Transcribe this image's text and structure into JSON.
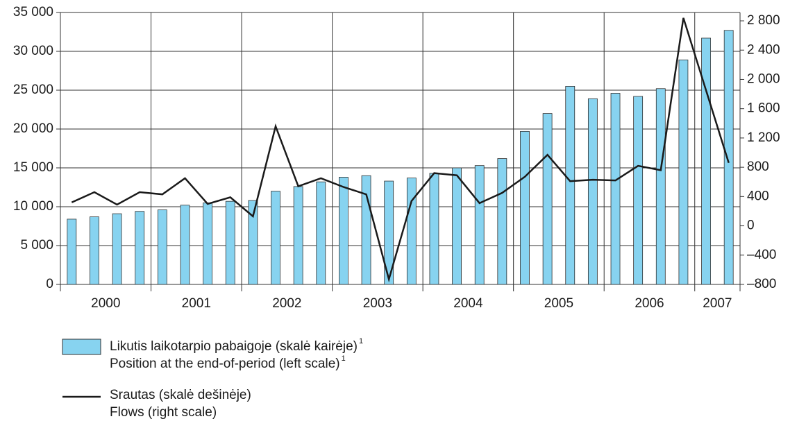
{
  "chart_data": {
    "type": "bar-line",
    "categories": [
      "2000",
      null,
      null,
      null,
      "2001",
      null,
      null,
      null,
      "2002",
      null,
      null,
      null,
      "2003",
      null,
      null,
      null,
      "2004",
      null,
      null,
      null,
      "2005",
      null,
      null,
      null,
      "2006",
      null,
      null,
      null,
      "2007",
      null
    ],
    "series": [
      {
        "name": "Likutis laikotarpio pabaigoje (skalė kairėje)",
        "name_en": "Position at the end-of-period (left scale)",
        "type": "bar",
        "color": "#87d3f0",
        "values": [
          8400,
          8700,
          9100,
          9400,
          9600,
          10200,
          10500,
          10700,
          10800,
          12000,
          12600,
          13200,
          13800,
          14000,
          13300,
          13700,
          14300,
          15000,
          15300,
          16200,
          19700,
          22000,
          25500,
          23900,
          24600,
          24200,
          25200,
          28900,
          31700,
          32700
        ]
      },
      {
        "name": "Srautas (skalė dešinėje)",
        "name_en": "Flows (right scale)",
        "type": "line",
        "axis": "y2",
        "color": "#1a1a1a",
        "values": [
          320,
          460,
          290,
          460,
          430,
          650,
          300,
          390,
          130,
          1360,
          540,
          650,
          530,
          430,
          -730,
          340,
          720,
          690,
          310,
          450,
          670,
          970,
          610,
          630,
          620,
          820,
          760,
          2840,
          1850,
          860
        ]
      }
    ],
    "footnote_mark": "1",
    "ylim": [
      0,
      35000
    ],
    "yticks": [
      0,
      {
        "value": 5000,
        "label": "5 000"
      },
      {
        "value": 10000,
        "label": "10 000"
      },
      {
        "value": 15000,
        "label": "15 000"
      },
      {
        "value": 20000,
        "label": "20 000"
      },
      {
        "value": 25000,
        "label": "25 000"
      },
      {
        "value": 30000,
        "label": "30 000"
      },
      {
        "value": 35000,
        "label": "35 000"
      }
    ],
    "y2lim": [
      -800,
      2914
    ],
    "y2ticks": [
      {
        "value": -800,
        "label": "–800"
      },
      {
        "value": -400,
        "label": "–400"
      },
      0,
      400,
      800,
      {
        "value": 1200,
        "label": "1 200"
      },
      {
        "value": 1600,
        "label": "1 600"
      },
      {
        "value": 2000,
        "label": "2 000"
      },
      {
        "value": 2400,
        "label": "2 400"
      },
      {
        "value": 2800,
        "label": "2 800"
      }
    ],
    "grid": true
  }
}
